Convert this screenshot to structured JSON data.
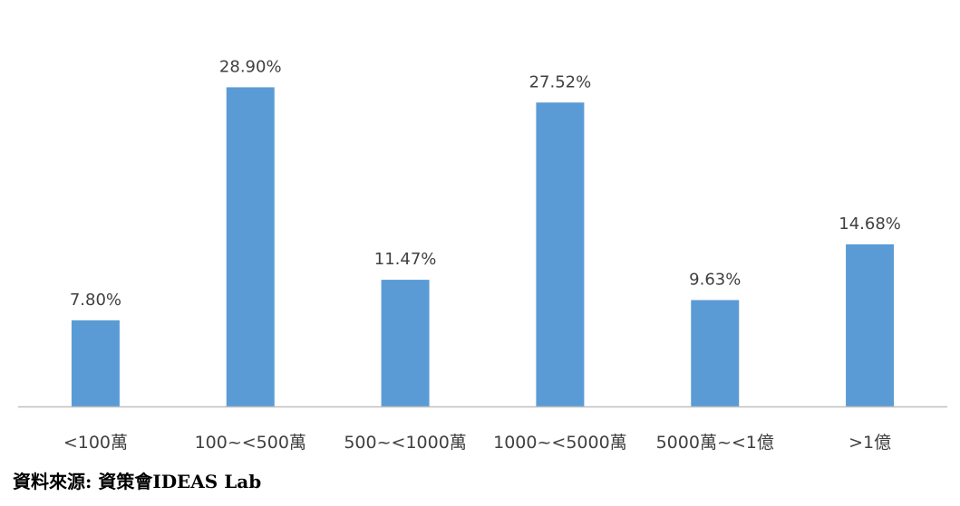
{
  "chart_data": {
    "type": "bar",
    "categories": [
      "<100萬",
      "100~<500萬",
      "500~<1000萬",
      "1000~<5000萬",
      "5000萬~<1億",
      ">1億"
    ],
    "values": [
      7.8,
      28.9,
      11.47,
      27.52,
      9.63,
      14.68
    ],
    "value_labels": [
      "7.80%",
      "28.90%",
      "11.47%",
      "27.52%",
      "9.63%",
      "14.68%"
    ],
    "unit": "%",
    "title": "",
    "xlabel": "",
    "ylabel": "",
    "ylim": [
      0,
      30
    ],
    "grid": false,
    "legend": "none",
    "bar_color": "#5B9BD5",
    "axis_color": "#BFBFBF",
    "text_color": "#404040"
  },
  "source_note": "資料來源: 資策會IDEAS Lab"
}
